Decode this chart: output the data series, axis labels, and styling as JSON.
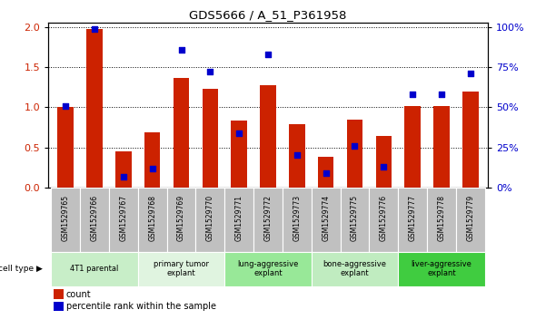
{
  "title": "GDS5666 / A_51_P361958",
  "samples": [
    "GSM1529765",
    "GSM1529766",
    "GSM1529767",
    "GSM1529768",
    "GSM1529769",
    "GSM1529770",
    "GSM1529771",
    "GSM1529772",
    "GSM1529773",
    "GSM1529774",
    "GSM1529775",
    "GSM1529776",
    "GSM1529777",
    "GSM1529778",
    "GSM1529779"
  ],
  "count_values": [
    1.0,
    1.97,
    0.45,
    0.69,
    1.37,
    1.23,
    0.84,
    1.27,
    0.79,
    0.38,
    0.85,
    0.64,
    1.02,
    1.01,
    1.2
  ],
  "percentile_values": [
    51,
    99,
    7,
    12,
    86,
    72,
    34,
    83,
    20,
    9,
    26,
    13,
    58,
    58,
    71
  ],
  "cell_types": [
    {
      "label": "4T1 parental",
      "start": 0,
      "end": 2,
      "color": "#c8eec8"
    },
    {
      "label": "primary tumor\nexplant",
      "start": 3,
      "end": 5,
      "color": "#e0f4e0"
    },
    {
      "label": "lung-aggressive\nexplant",
      "start": 6,
      "end": 8,
      "color": "#98e898"
    },
    {
      "label": "bone-aggressive\nexplant",
      "start": 9,
      "end": 11,
      "color": "#c0ecc0"
    },
    {
      "label": "liver-aggressive\nexplant",
      "start": 12,
      "end": 14,
      "color": "#40cc40"
    }
  ],
  "bar_color": "#cc2200",
  "dot_color": "#0000cc",
  "ylim_left": [
    0,
    2.05
  ],
  "ylim_right": [
    0,
    102.5
  ],
  "yticks_left": [
    0,
    0.5,
    1.0,
    1.5,
    2.0
  ],
  "yticks_right": [
    0,
    25,
    50,
    75,
    100
  ],
  "bar_width": 0.55,
  "sample_box_color": "#c0c0c0",
  "legend_count": "count",
  "legend_percentile": "percentile rank within the sample"
}
